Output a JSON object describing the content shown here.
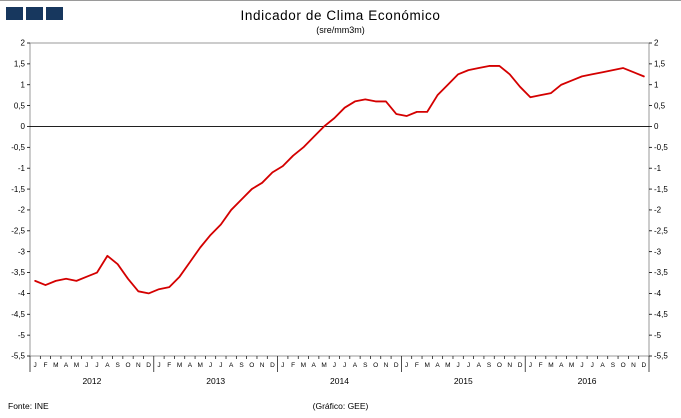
{
  "header": {
    "title": "Indicador de Clima Económico",
    "subtitle": "(sre/mm3m)"
  },
  "logo": {
    "color": "#17375E",
    "square_count": 3
  },
  "footer": {
    "source_left": "Fonte: INE",
    "source_center": "(Gráfico: GEE)"
  },
  "chart_data": {
    "type": "line",
    "title": "Indicador de Clima Económico",
    "subtitle": "(sre/mm3m)",
    "ylim": [
      -5.5,
      2
    ],
    "ytick_step": 0.5,
    "ytick_labels": [
      "2",
      "1,5",
      "1",
      "0,5",
      "0",
      "-0,5",
      "-1",
      "-1,5",
      "-2",
      "-2,5",
      "-3",
      "-3,5",
      "-4",
      "-4,5",
      "-5",
      "-5,5"
    ],
    "month_labels": [
      "J",
      "F",
      "M",
      "A",
      "M",
      "J",
      "J",
      "A",
      "S",
      "O",
      "N",
      "D"
    ],
    "years": [
      "2012",
      "2013",
      "2014",
      "2015",
      "2016"
    ],
    "grid": false,
    "legend": "none",
    "series": [
      {
        "name": "Indicador de Clima Económico (sre/mm3m)",
        "color": "#D40000",
        "values": [
          -3.7,
          -3.8,
          -3.7,
          -3.65,
          -3.7,
          -3.6,
          -3.5,
          -3.1,
          -3.3,
          -3.65,
          -3.95,
          -4.0,
          -3.9,
          -3.85,
          -3.6,
          -3.25,
          -2.9,
          -2.6,
          -2.35,
          -2.0,
          -1.75,
          -1.5,
          -1.35,
          -1.1,
          -0.95,
          -0.7,
          -0.5,
          -0.25,
          0.0,
          0.2,
          0.45,
          0.6,
          0.65,
          0.6,
          0.6,
          0.3,
          0.25,
          0.35,
          0.35,
          0.75,
          1.0,
          1.25,
          1.35,
          1.4,
          1.45,
          1.45,
          1.25,
          0.95,
          0.7,
          0.75,
          0.8,
          1.0,
          1.1,
          1.2,
          1.25,
          1.3,
          1.35,
          1.4,
          1.3,
          1.2
        ]
      }
    ],
    "axis_color": "#000000",
    "plot_border_color": "#7f7f7f"
  }
}
